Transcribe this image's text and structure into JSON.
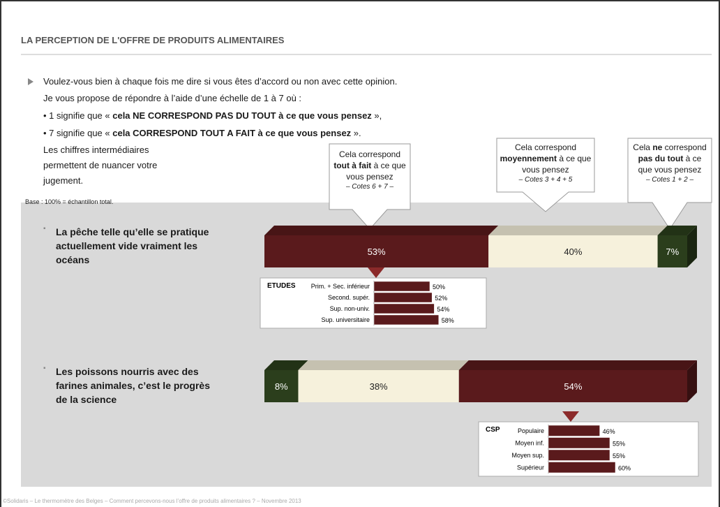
{
  "title": "LA PERCEPTION DE L'OFFRE DE PRODUITS ALIMENTAIRES",
  "intro": [
    [
      {
        "text": "Voulez-vous bien à chaque fois me dire si vous êtes d’accord ou non avec cette opinion."
      }
    ],
    [
      {
        "text": "Je vous propose de répondre à l’aide d’une échelle de 1 à 7 où :"
      }
    ],
    [
      {
        "text": "• 1 signifie que « "
      },
      {
        "text": "cela NE CORRESPOND PAS DU TOUT à ce que vous pensez",
        "bold": true
      },
      {
        "text": " »,"
      }
    ],
    [
      {
        "text": "• 7 signifie que « "
      },
      {
        "text": "cela CORRESPOND TOUT A FAIT à ce que vous pensez",
        "bold": true
      },
      {
        "text": " »."
      }
    ],
    [
      {
        "text": "Les chiffres intermédiaires permettent de nuancer votre jugement."
      }
    ]
  ],
  "base": "Base : 100% = échantillon total.",
  "callouts": [
    {
      "parts": [
        {
          "text": "Cela correspond "
        },
        {
          "text": "tout à fait",
          "bold": true
        },
        {
          "text": " à ce que vous pensez"
        }
      ],
      "note": "– Cotes 6 + 7 –"
    },
    {
      "parts": [
        {
          "text": "Cela correspond "
        },
        {
          "text": "moyennement",
          "bold": true
        },
        {
          "text": " à ce que vous pensez"
        }
      ],
      "note": "– Cotes 3 + 4 + 5"
    },
    {
      "parts": [
        {
          "text": "Cela "
        },
        {
          "text": "ne",
          "bold": true
        },
        {
          "text": " correspond "
        },
        {
          "text": "pas du tout",
          "bold": true
        },
        {
          "text": " à ce que vous pensez"
        }
      ],
      "note": "– Cotes 1 + 2 –"
    }
  ],
  "items": [
    {
      "label": "La pêche telle qu’elle se pratique actuellement vide vraiment les océans",
      "values": [
        53,
        40,
        7
      ],
      "value_labels": [
        "53%",
        "40%",
        "7%"
      ],
      "colors": [
        "#5a1a1c",
        "#f6f1dc",
        "#2b3e1c"
      ],
      "breakdown": {
        "title": "ETUDES",
        "categories": [
          "Prim. + Sec. inférieur",
          "Second. supér.",
          "Sup. non-univ.",
          "Sup. universitaire"
        ],
        "values": [
          50,
          52,
          54,
          58
        ],
        "value_labels": [
          "50%",
          "52%",
          "54%",
          "58%"
        ]
      }
    },
    {
      "label": "Les poissons nourris avec des farines animales, c’est le progrès de la science",
      "values": [
        8,
        38,
        54
      ],
      "value_labels": [
        "8%",
        "38%",
        "54%"
      ],
      "colors": [
        "#2b3e1c",
        "#f6f1dc",
        "#5a1a1c"
      ],
      "breakdown": {
        "title": "CSP",
        "categories": [
          "Populaire",
          "Moyen inf.",
          "Moyen sup.",
          "Supérieur"
        ],
        "values": [
          46,
          55,
          55,
          60
        ],
        "value_labels": [
          "46%",
          "55%",
          "55%",
          "60%"
        ]
      }
    }
  ],
  "footer": "©Solidaris – Le thermomètre des Belges – Comment percevons-nous l’offre de produits alimentaires ? – Novembre 2013"
}
